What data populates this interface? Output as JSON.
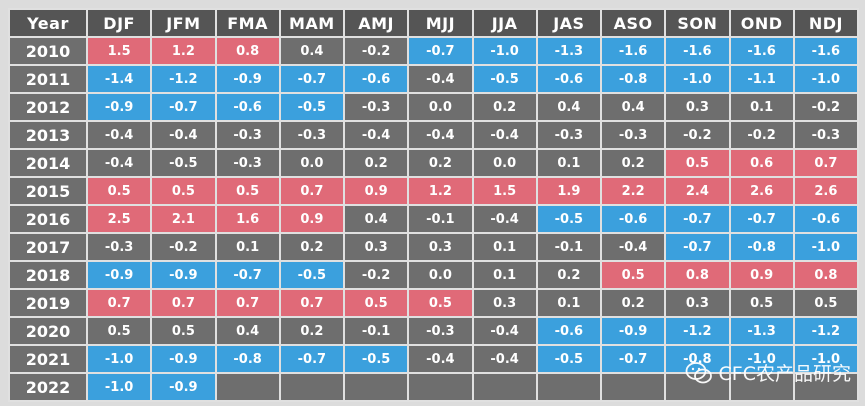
{
  "colors": {
    "warm": "#e06a78",
    "cool": "#3ba0dd",
    "neutral": "#6e6e6e",
    "header": "#555555",
    "year_cell": "#6e6e6e"
  },
  "chart_data": {
    "type": "table",
    "columns": [
      "Year",
      "DJF",
      "JFM",
      "FMA",
      "MAM",
      "AMJ",
      "MJJ",
      "JJA",
      "JAS",
      "ASO",
      "SON",
      "OND",
      "NDJ"
    ],
    "rows": [
      {
        "year": "2010",
        "values": [
          "1.5",
          "1.2",
          "0.8",
          "0.4",
          "-0.2",
          "-0.7",
          "-1.0",
          "-1.3",
          "-1.6",
          "-1.6",
          "-1.6",
          "-1.6"
        ],
        "classes": [
          "warm",
          "warm",
          "warm",
          "neutral",
          "neutral",
          "cool",
          "cool",
          "cool",
          "cool",
          "cool",
          "cool",
          "cool"
        ]
      },
      {
        "year": "2011",
        "values": [
          "-1.4",
          "-1.2",
          "-0.9",
          "-0.7",
          "-0.6",
          "-0.4",
          "-0.5",
          "-0.6",
          "-0.8",
          "-1.0",
          "-1.1",
          "-1.0"
        ],
        "classes": [
          "cool",
          "cool",
          "cool",
          "cool",
          "cool",
          "neutral",
          "cool",
          "cool",
          "cool",
          "cool",
          "cool",
          "cool"
        ]
      },
      {
        "year": "2012",
        "values": [
          "-0.9",
          "-0.7",
          "-0.6",
          "-0.5",
          "-0.3",
          "0.0",
          "0.2",
          "0.4",
          "0.4",
          "0.3",
          "0.1",
          "-0.2"
        ],
        "classes": [
          "cool",
          "cool",
          "cool",
          "cool",
          "neutral",
          "neutral",
          "neutral",
          "neutral",
          "neutral",
          "neutral",
          "neutral",
          "neutral"
        ]
      },
      {
        "year": "2013",
        "values": [
          "-0.4",
          "-0.4",
          "-0.3",
          "-0.3",
          "-0.4",
          "-0.4",
          "-0.4",
          "-0.3",
          "-0.3",
          "-0.2",
          "-0.2",
          "-0.3"
        ],
        "classes": [
          "neutral",
          "neutral",
          "neutral",
          "neutral",
          "neutral",
          "neutral",
          "neutral",
          "neutral",
          "neutral",
          "neutral",
          "neutral",
          "neutral"
        ]
      },
      {
        "year": "2014",
        "values": [
          "-0.4",
          "-0.5",
          "-0.3",
          "0.0",
          "0.2",
          "0.2",
          "0.0",
          "0.1",
          "0.2",
          "0.5",
          "0.6",
          "0.7"
        ],
        "classes": [
          "neutral",
          "neutral",
          "neutral",
          "neutral",
          "neutral",
          "neutral",
          "neutral",
          "neutral",
          "neutral",
          "warm",
          "warm",
          "warm"
        ]
      },
      {
        "year": "2015",
        "values": [
          "0.5",
          "0.5",
          "0.5",
          "0.7",
          "0.9",
          "1.2",
          "1.5",
          "1.9",
          "2.2",
          "2.4",
          "2.6",
          "2.6"
        ],
        "classes": [
          "warm",
          "warm",
          "warm",
          "warm",
          "warm",
          "warm",
          "warm",
          "warm",
          "warm",
          "warm",
          "warm",
          "warm"
        ]
      },
      {
        "year": "2016",
        "values": [
          "2.5",
          "2.1",
          "1.6",
          "0.9",
          "0.4",
          "-0.1",
          "-0.4",
          "-0.5",
          "-0.6",
          "-0.7",
          "-0.7",
          "-0.6"
        ],
        "classes": [
          "warm",
          "warm",
          "warm",
          "warm",
          "neutral",
          "neutral",
          "neutral",
          "cool",
          "cool",
          "cool",
          "cool",
          "cool"
        ]
      },
      {
        "year": "2017",
        "values": [
          "-0.3",
          "-0.2",
          "0.1",
          "0.2",
          "0.3",
          "0.3",
          "0.1",
          "-0.1",
          "-0.4",
          "-0.7",
          "-0.8",
          "-1.0"
        ],
        "classes": [
          "neutral",
          "neutral",
          "neutral",
          "neutral",
          "neutral",
          "neutral",
          "neutral",
          "neutral",
          "neutral",
          "cool",
          "cool",
          "cool"
        ]
      },
      {
        "year": "2018",
        "values": [
          "-0.9",
          "-0.9",
          "-0.7",
          "-0.5",
          "-0.2",
          "0.0",
          "0.1",
          "0.2",
          "0.5",
          "0.8",
          "0.9",
          "0.8"
        ],
        "classes": [
          "cool",
          "cool",
          "cool",
          "cool",
          "neutral",
          "neutral",
          "neutral",
          "neutral",
          "warm",
          "warm",
          "warm",
          "warm"
        ]
      },
      {
        "year": "2019",
        "values": [
          "0.7",
          "0.7",
          "0.7",
          "0.7",
          "0.5",
          "0.5",
          "0.3",
          "0.1",
          "0.2",
          "0.3",
          "0.5",
          "0.5"
        ],
        "classes": [
          "warm",
          "warm",
          "warm",
          "warm",
          "warm",
          "warm",
          "neutral",
          "neutral",
          "neutral",
          "neutral",
          "neutral",
          "neutral"
        ]
      },
      {
        "year": "2020",
        "values": [
          "0.5",
          "0.5",
          "0.4",
          "0.2",
          "-0.1",
          "-0.3",
          "-0.4",
          "-0.6",
          "-0.9",
          "-1.2",
          "-1.3",
          "-1.2"
        ],
        "classes": [
          "neutral",
          "neutral",
          "neutral",
          "neutral",
          "neutral",
          "neutral",
          "neutral",
          "cool",
          "cool",
          "cool",
          "cool",
          "cool"
        ]
      },
      {
        "year": "2021",
        "values": [
          "-1.0",
          "-0.9",
          "-0.8",
          "-0.7",
          "-0.5",
          "-0.4",
          "-0.4",
          "-0.5",
          "-0.7",
          "-0.8",
          "-1.0",
          "-1.0"
        ],
        "classes": [
          "cool",
          "cool",
          "cool",
          "cool",
          "cool",
          "neutral",
          "neutral",
          "cool",
          "cool",
          "cool",
          "cool",
          "cool"
        ]
      },
      {
        "year": "2022",
        "values": [
          "-1.0",
          "-0.9",
          "",
          "",
          "",
          "",
          "",
          "",
          "",
          "",
          "",
          ""
        ],
        "classes": [
          "cool",
          "cool",
          "empty",
          "empty",
          "empty",
          "empty",
          "empty",
          "empty",
          "empty",
          "empty",
          "empty",
          "empty"
        ]
      }
    ]
  },
  "watermark": {
    "text": "CFC农产品研究",
    "icon": "wechat-icon"
  }
}
